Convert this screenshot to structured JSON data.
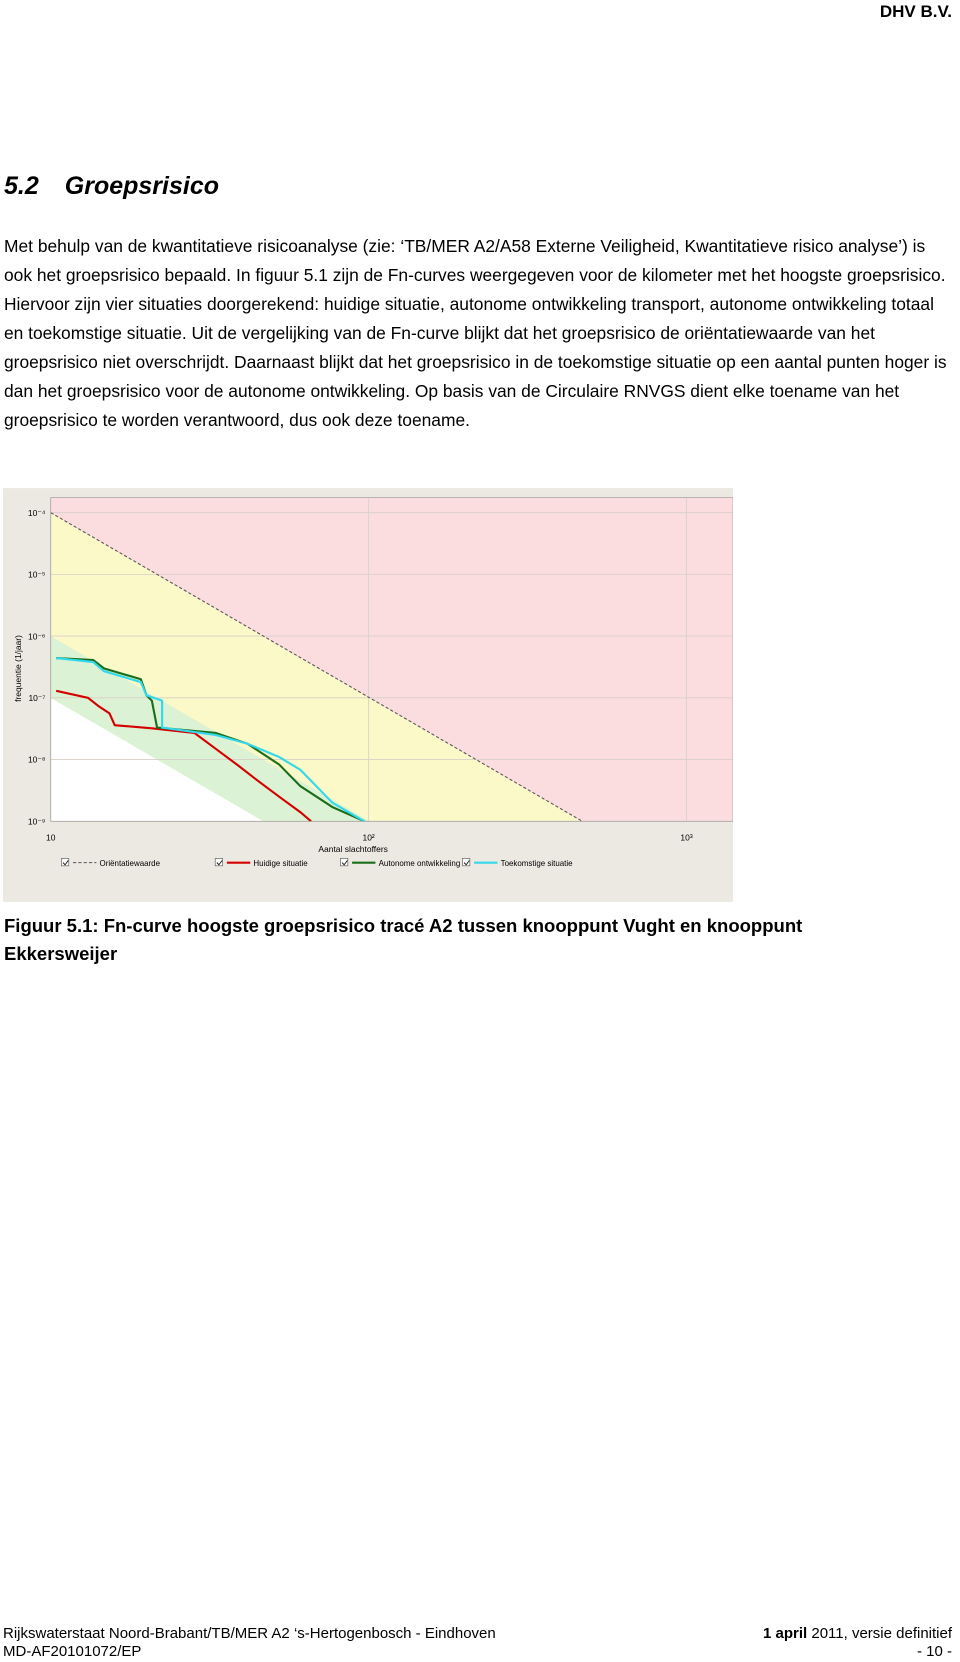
{
  "header": "DHV B.V.",
  "heading": {
    "number": "5.2",
    "title": "Groepsrisico"
  },
  "paragraph": "Met behulp van de kwantitatieve risicoanalyse (zie: ‘TB/MER A2/A58 Externe Veiligheid, Kwantitatieve risico analyse’) is ook het groepsrisico bepaald. In figuur 5.1 zijn de Fn-curves weergegeven voor de kilometer met het hoogste groepsrisico. Hiervoor zijn vier situaties doorgerekend: huidige situatie, autonome ontwikkeling transport, autonome ontwikkeling totaal en toekomstige situatie. Uit de vergelijking van de Fn-curve blijkt  dat het groepsrisico de oriëntatiewaarde van het groepsrisico niet overschrijdt. Daarnaast blijkt dat het groepsrisico in de toekomstige situatie op een aantal punten hoger is dan het groepsrisico voor de autonome ontwikkeling. Op basis van de Circulaire RNVGS dient elke toename van het groepsrisico te worden verantwoord, dus ook deze toename.",
  "chart_data": {
    "type": "line",
    "x_label": "Aantal slachtoffers",
    "y_label": "frequentie (1/jaar)",
    "xscale": "log",
    "yscale": "log",
    "xlim": [
      10,
      1400
    ],
    "ylim": [
      1e-09,
      0.000175
    ],
    "xticks": [
      10,
      {
        "value": 100,
        "label": "10²"
      },
      {
        "value": 1000,
        "label": "10³"
      }
    ],
    "yticks": [
      {
        "value": 0.0001,
        "label": "10⁻⁴"
      },
      {
        "value": 1e-05,
        "label": "10⁻⁵"
      },
      {
        "value": 1e-06,
        "label": "10⁻⁶"
      },
      {
        "value": 1e-07,
        "label": "10⁻⁷"
      },
      {
        "value": 1e-08,
        "label": "10⁻⁸"
      },
      {
        "value": 1e-09,
        "label": "10⁻⁹"
      }
    ],
    "grid": true,
    "series": [
      {
        "name": "Oriëntatiewaarde",
        "color": "#555555",
        "dashed": true,
        "x": [
          10,
          470
        ],
        "values": [
          0.0001,
          1e-09
        ]
      },
      {
        "name": "Huidige situatie",
        "color": "#d40000",
        "x": [
          10.4,
          13.1,
          14.1,
          15.3,
          15.9,
          20.8,
          28.3,
          33.0,
          38.5,
          44.9,
          52.3,
          61.0,
          65.9
        ],
        "values": [
          1.3e-07,
          1e-07,
          7.4e-08,
          5.6e-08,
          3.6e-08,
          3.2e-08,
          2.7e-08,
          1.5e-08,
          8.3e-09,
          4.5e-09,
          2.5e-09,
          1.4e-09,
          1e-09
        ]
      },
      {
        "name": "Autonome ontwikkeling",
        "color": "#1a6e1a",
        "x": [
          10.4,
          13.6,
          14.7,
          19.2,
          20.0,
          20.8,
          21.6,
          33.0,
          41.6,
          52.3,
          61.0,
          76.9,
          97.0
        ],
        "values": [
          4.4e-07,
          4.1e-07,
          3e-07,
          2e-07,
          1.1e-07,
          9e-08,
          3.3e-08,
          2.7e-08,
          1.8e-08,
          8.3e-09,
          3.7e-09,
          1.7e-09,
          1e-09
        ]
      },
      {
        "name": "Toekomstige situatie",
        "color": "#33d8ea",
        "x": [
          10.4,
          13.6,
          14.7,
          19.2,
          20.0,
          22.4,
          22.4,
          33.0,
          41.6,
          52.3,
          61.0,
          76.9,
          97.0
        ],
        "values": [
          4.4e-07,
          3.8e-07,
          2.7e-07,
          1.8e-07,
          1.1e-07,
          9e-08,
          3.3e-08,
          2.5e-08,
          1.8e-08,
          1.1e-08,
          6.8e-09,
          2e-09,
          1e-09
        ]
      }
    ]
  },
  "caption": "Figuur 5.1: Fn-curve hoogste groepsrisico tracé A2 tussen knooppunt Vught en knooppunt Ekkersweijer",
  "footer": {
    "left1": "Rijkswaterstaat Noord-Brabant/TB/MER A2 ‘s-Hertogenbosch - Eindhoven",
    "date_bold": "1 april",
    "date_rest": "2011, versie definitief",
    "left2": "MD-AF20101072/EP",
    "page": "- 10 -"
  }
}
